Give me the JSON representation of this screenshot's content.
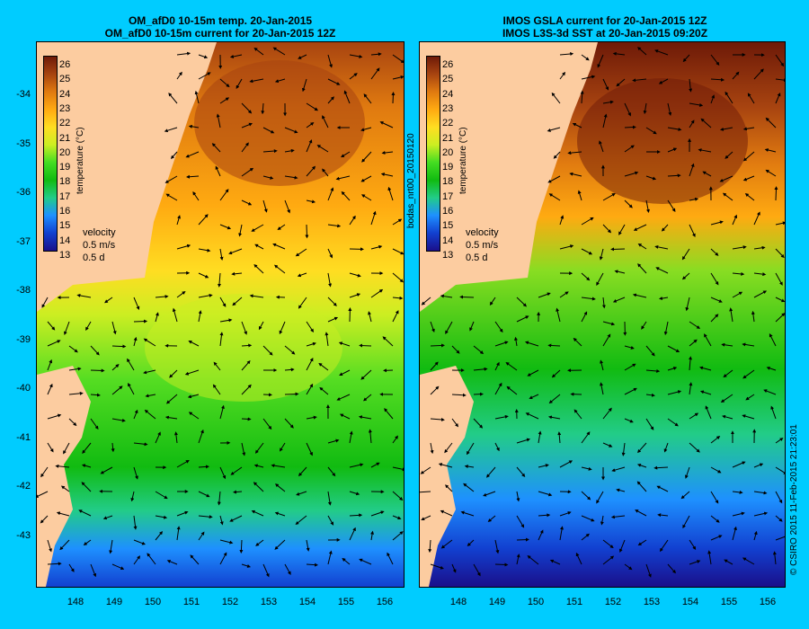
{
  "left_panel": {
    "title_line1": "OM_afD0 10-15m temp. 20-Jan-2015",
    "title_line2": "OM_afD0 10-15m current for 20-Jan-2015 12Z",
    "colorbar_title": "temperature (°C)",
    "velocity_label": "velocity",
    "velocity_speed": "0.5 m/s",
    "velocity_time": "0.5 d"
  },
  "right_panel": {
    "title_line1": "IMOS GSLA current for 20-Jan-2015 12Z",
    "title_line2": "IMOS L3S-3d SST at 20-Jan-2015 09:20Z",
    "colorbar_title": "temperature (°C)",
    "velocity_label": "velocity",
    "velocity_speed": "0.5 m/s",
    "velocity_time": "0.5 d",
    "vertical_label": "bodas_nrt00_20150120"
  },
  "credit": "© CSIRO 2015  11-Feb-2015 21:23:01",
  "axes": {
    "y_ticks": [
      "-34",
      "-35",
      "-36",
      "-37",
      "-38",
      "-39",
      "-40",
      "-41",
      "-42",
      "-43"
    ],
    "x_ticks": [
      "148",
      "149",
      "150",
      "151",
      "152",
      "153",
      "154",
      "155",
      "156"
    ]
  },
  "colorbar_ticks": [
    "26",
    "25",
    "24",
    "23",
    "22",
    "21",
    "20",
    "19",
    "18",
    "17",
    "16",
    "15",
    "14",
    "13"
  ],
  "colors": {
    "background": "#00ccff",
    "land": "#fccca0",
    "colormap": [
      "#1a0f8a",
      "#1240d0",
      "#1e90ff",
      "#22cc88",
      "#11bb11",
      "#44dd22",
      "#ccee22",
      "#ffdd22",
      "#ffaa11",
      "#e07a10",
      "#a84410",
      "#6e1a08"
    ]
  }
}
